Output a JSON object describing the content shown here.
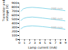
{
  "chart_data": {
    "type": "line",
    "title": "",
    "xlabel": "Lamp current (mA)",
    "ylabel": "Transistor and lamp\nvoltage (V)",
    "xlim": [
      0,
      9
    ],
    "ylim": [
      0,
      900
    ],
    "xticks": [
      0,
      1,
      2,
      3,
      4,
      5,
      6,
      7,
      8,
      9
    ],
    "yticks": [
      0,
      100,
      200,
      300,
      400,
      500,
      600,
      700,
      800,
      900
    ],
    "grid": false,
    "x": [
      0.3,
      0.8,
      1.5,
      2.5,
      3.5,
      4.5,
      5.5,
      6.5,
      7.5,
      8.5,
      9.0
    ],
    "series": [
      {
        "name": "200 mm",
        "color": "#82d4e8",
        "values": [
          700,
          760,
          785,
          795,
          785,
          775,
          760,
          748,
          735,
          720,
          710
        ]
      },
      {
        "name": "150 mm",
        "color": "#82d4e8",
        "values": [
          470,
          520,
          545,
          555,
          545,
          530,
          515,
          500,
          485,
          468,
          458
        ]
      },
      {
        "name": "100 mm",
        "color": "#82d4e8",
        "values": [
          265,
          308,
          328,
          338,
          330,
          318,
          305,
          290,
          275,
          260,
          250
        ]
      }
    ],
    "annotations": [
      {
        "text": "200 mm",
        "x": 6.2,
        "y": 760
      },
      {
        "text": "150 mm",
        "x": 6.2,
        "y": 510
      },
      {
        "text": "100 mm",
        "x": 6.2,
        "y": 300
      }
    ]
  }
}
